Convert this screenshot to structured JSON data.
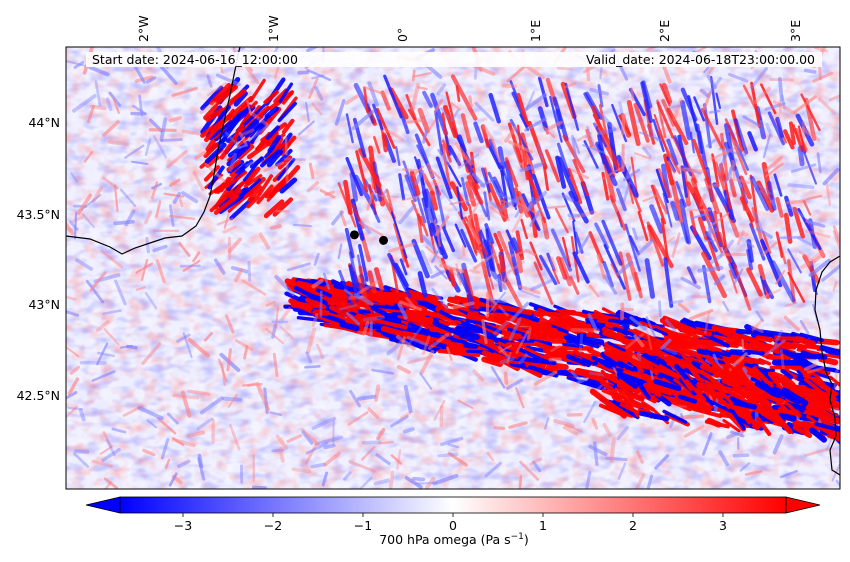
{
  "map": {
    "start_date": "Start date: 2024-06-16_12:00:00",
    "valid_date": "Valid_date: 2024-06-18T23:00:00.00",
    "lon_labels": [
      "2°W",
      "1°W",
      "0°",
      "1°E",
      "2°E",
      "3°E"
    ],
    "lat_labels": [
      "44°N",
      "43.5°N",
      "43°N",
      "42.5°N"
    ],
    "colormap": "bwr",
    "field": "700 hPa omega",
    "extent": {
      "lon_min": -2.55,
      "lon_max": 3.3,
      "lat_min": 42.0,
      "lat_max": 44.4
    },
    "points": [
      {
        "lon": -0.37,
        "lat": 43.38
      },
      {
        "lon": -0.15,
        "lat": 43.35
      }
    ]
  },
  "colorbar": {
    "ticks": [
      "−3",
      "−2",
      "−1",
      "0",
      "1",
      "2",
      "3"
    ],
    "label": "700 hPa omega (Pa s",
    "label_sup": "−1",
    "label_end": ")",
    "min": -3.7,
    "max": 3.7,
    "low_color": "#0000ff",
    "mid_color": "#ffffff",
    "high_color": "#ff0000",
    "extend": "both"
  }
}
